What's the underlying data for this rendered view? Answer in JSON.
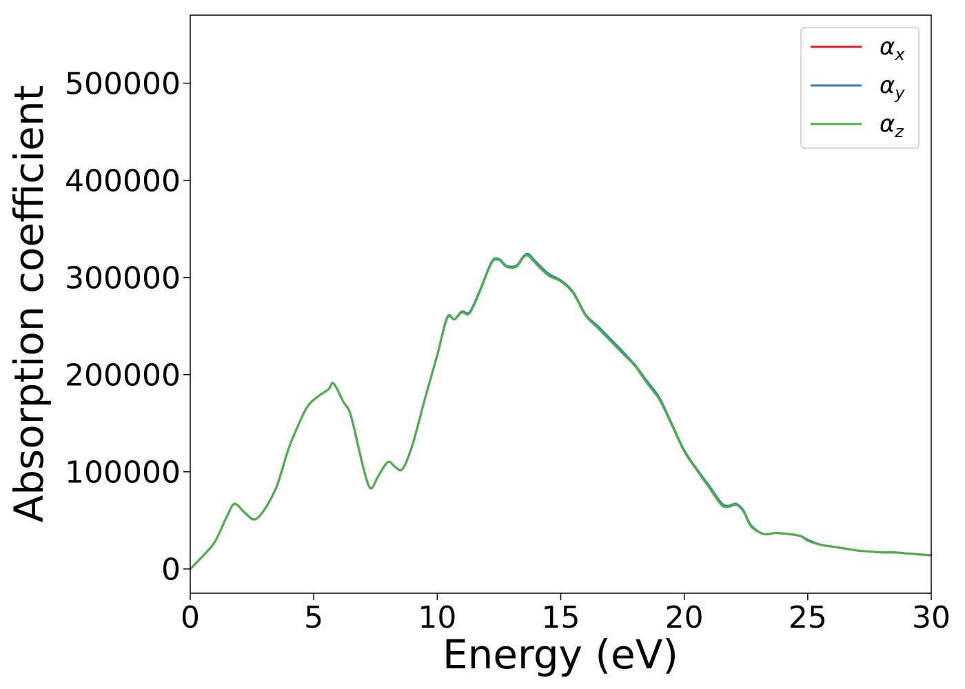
{
  "chart_data": {
    "type": "line",
    "title": "",
    "xlabel": "Energy (eV)",
    "ylabel": "Absorption coefficient",
    "xlim": [
      0,
      30
    ],
    "ylim": [
      -25000,
      570000
    ],
    "xticks": [
      0,
      5,
      10,
      15,
      20,
      25,
      30
    ],
    "yticks": [
      0,
      100000,
      200000,
      300000,
      400000,
      500000
    ],
    "grid": false,
    "legend_position": "top-right",
    "x": [
      0,
      0.5,
      1.0,
      1.5,
      1.8,
      2.2,
      2.6,
      3.0,
      3.5,
      4.0,
      4.5,
      4.8,
      5.2,
      5.6,
      5.8,
      6.2,
      6.5,
      7.0,
      7.3,
      7.6,
      8.0,
      8.3,
      8.6,
      9.0,
      9.5,
      10.0,
      10.4,
      10.7,
      11.0,
      11.3,
      11.7,
      12.2,
      12.5,
      12.8,
      13.2,
      13.5,
      13.7,
      14.0,
      14.5,
      15.0,
      15.5,
      16.0,
      16.5,
      17.0,
      17.5,
      18.0,
      18.5,
      19.0,
      19.5,
      20.0,
      20.5,
      21.0,
      21.5,
      21.8,
      22.1,
      22.4,
      22.7,
      23.2,
      23.7,
      24.2,
      24.7,
      25.0,
      25.5,
      26.0,
      26.5,
      27.0,
      27.5,
      28.0,
      28.5,
      29.0,
      29.5,
      30.0
    ],
    "series": [
      {
        "name": "α_x",
        "name_base": "α",
        "name_sub": "x",
        "color": "#e41a1c",
        "values": [
          0,
          13000,
          28000,
          55000,
          67000,
          58000,
          51000,
          61000,
          85000,
          125000,
          155000,
          169000,
          178000,
          185000,
          191000,
          172000,
          158000,
          105000,
          83000,
          95000,
          110000,
          105000,
          103000,
          128000,
          175000,
          220000,
          258000,
          257000,
          265000,
          263000,
          285000,
          315000,
          318000,
          312000,
          312000,
          322000,
          323000,
          315000,
          303000,
          297000,
          285000,
          262000,
          249000,
          236000,
          223000,
          210000,
          192000,
          175000,
          149000,
          122000,
          103000,
          85000,
          67000,
          65000,
          67000,
          60000,
          45000,
          36000,
          37000,
          36000,
          34000,
          30000,
          25000,
          23000,
          21000,
          19000,
          18000,
          17000,
          17000,
          16000,
          15000,
          14000
        ]
      },
      {
        "name": "α_y",
        "name_base": "α",
        "name_sub": "y",
        "color": "#377eb8",
        "values": [
          0,
          13000,
          28000,
          55000,
          67000,
          58000,
          51000,
          61000,
          85000,
          125000,
          155000,
          169000,
          178000,
          185000,
          191000,
          172000,
          158000,
          105000,
          83000,
          95000,
          110000,
          105000,
          103000,
          128000,
          175000,
          220000,
          259000,
          257000,
          265000,
          264000,
          285000,
          316000,
          319000,
          312000,
          312000,
          322000,
          324000,
          316000,
          304000,
          297000,
          285000,
          262000,
          250000,
          237000,
          224000,
          210000,
          193000,
          176000,
          149000,
          122000,
          103000,
          86000,
          68000,
          65000,
          67000,
          60000,
          45000,
          36000,
          37000,
          36000,
          34000,
          30000,
          25000,
          23000,
          21000,
          19000,
          18000,
          17000,
          17000,
          16000,
          15000,
          14000
        ]
      },
      {
        "name": "α_z",
        "name_base": "α",
        "name_sub": "z",
        "color": "#4daf4a",
        "values": [
          0,
          13000,
          28000,
          55000,
          67000,
          58000,
          51000,
          61000,
          85000,
          125000,
          155000,
          169000,
          178000,
          185000,
          191000,
          172000,
          158000,
          105000,
          83000,
          95000,
          110000,
          105000,
          103000,
          128000,
          175000,
          220000,
          258000,
          257000,
          264000,
          263000,
          284000,
          315000,
          318000,
          311000,
          311000,
          321000,
          322000,
          314000,
          302000,
          296000,
          284000,
          261000,
          248000,
          235000,
          222000,
          209000,
          191000,
          174000,
          148000,
          121000,
          102000,
          84000,
          66000,
          64000,
          66000,
          59000,
          44000,
          36000,
          37000,
          36000,
          34000,
          29000,
          25000,
          23000,
          21000,
          19000,
          18000,
          17000,
          17000,
          16000,
          15000,
          14000
        ]
      }
    ]
  }
}
